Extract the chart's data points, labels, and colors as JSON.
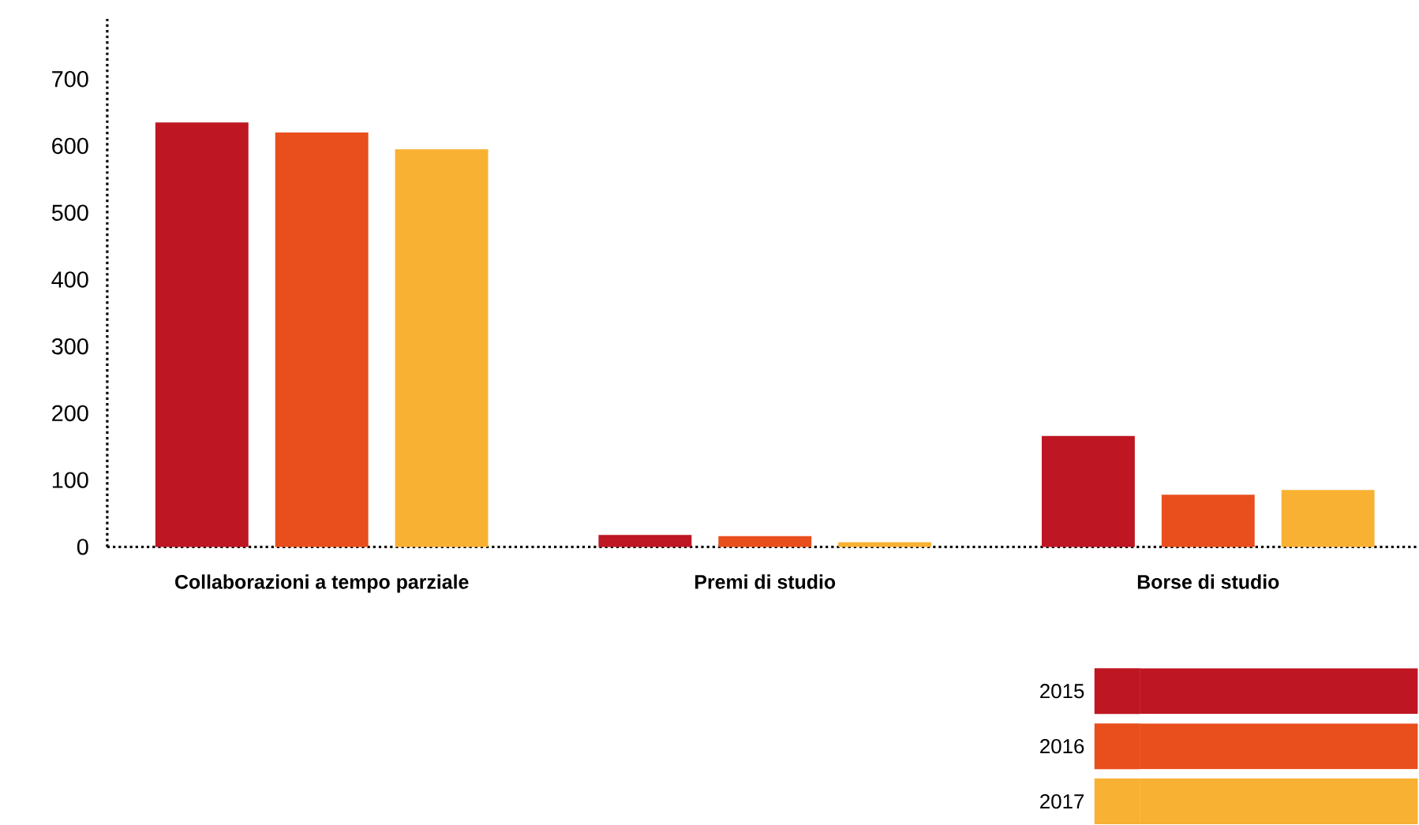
{
  "chart_data": {
    "type": "bar",
    "categories": [
      "Collaborazioni a tempo parziale",
      "Premi di studio",
      "Borse di studio"
    ],
    "series": [
      {
        "name": "2015",
        "color": "#be1622",
        "values": [
          635,
          18,
          166
        ]
      },
      {
        "name": "2016",
        "color": "#e94e1d",
        "values": [
          620,
          16,
          78
        ]
      },
      {
        "name": "2017",
        "color": "#f8b133",
        "values": [
          595,
          7,
          85
        ]
      }
    ],
    "ylim": [
      0,
      790
    ],
    "yticks": [
      0,
      100,
      200,
      300,
      400,
      500,
      600,
      700
    ],
    "legend": "bottom right"
  }
}
